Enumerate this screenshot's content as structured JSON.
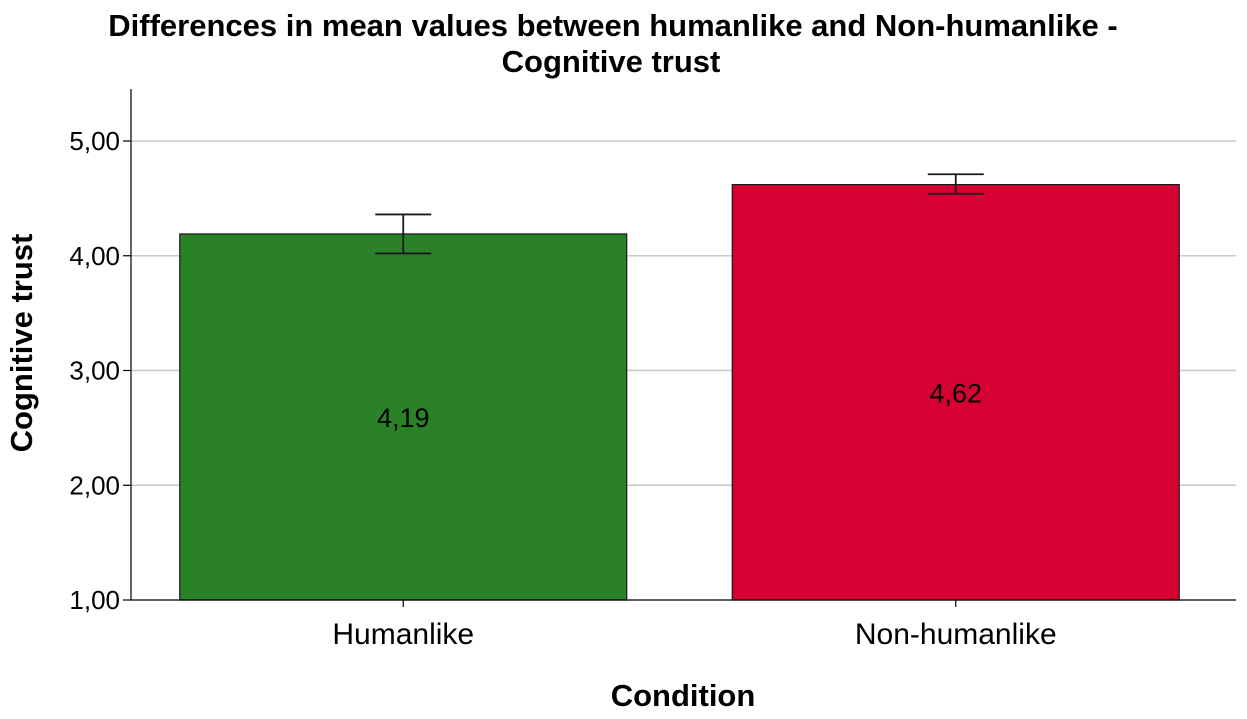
{
  "chart_data": {
    "type": "bar",
    "title_lines": [
      "Differences in mean values between humanlike and Non-humanlike -",
      "Cognitive trust"
    ],
    "xlabel": "Condition",
    "ylabel": "Cognitive trust",
    "categories": [
      "Humanlike",
      "Non-humanlike"
    ],
    "values": [
      4.19,
      4.62
    ],
    "data_labels": [
      "4,19",
      "4,62"
    ],
    "error_bars": [
      {
        "low": 4.02,
        "high": 4.36
      },
      {
        "low": 4.54,
        "high": 4.71
      }
    ],
    "colors": [
      "#2b8128",
      "#d60032"
    ],
    "ylim": [
      1,
      5.45
    ],
    "yticks": [
      1,
      2,
      3,
      4,
      5
    ],
    "ytick_labels": [
      "1,00",
      "2,00",
      "3,00",
      "4,00",
      "5,00"
    ],
    "grid": true,
    "legend": "none"
  }
}
